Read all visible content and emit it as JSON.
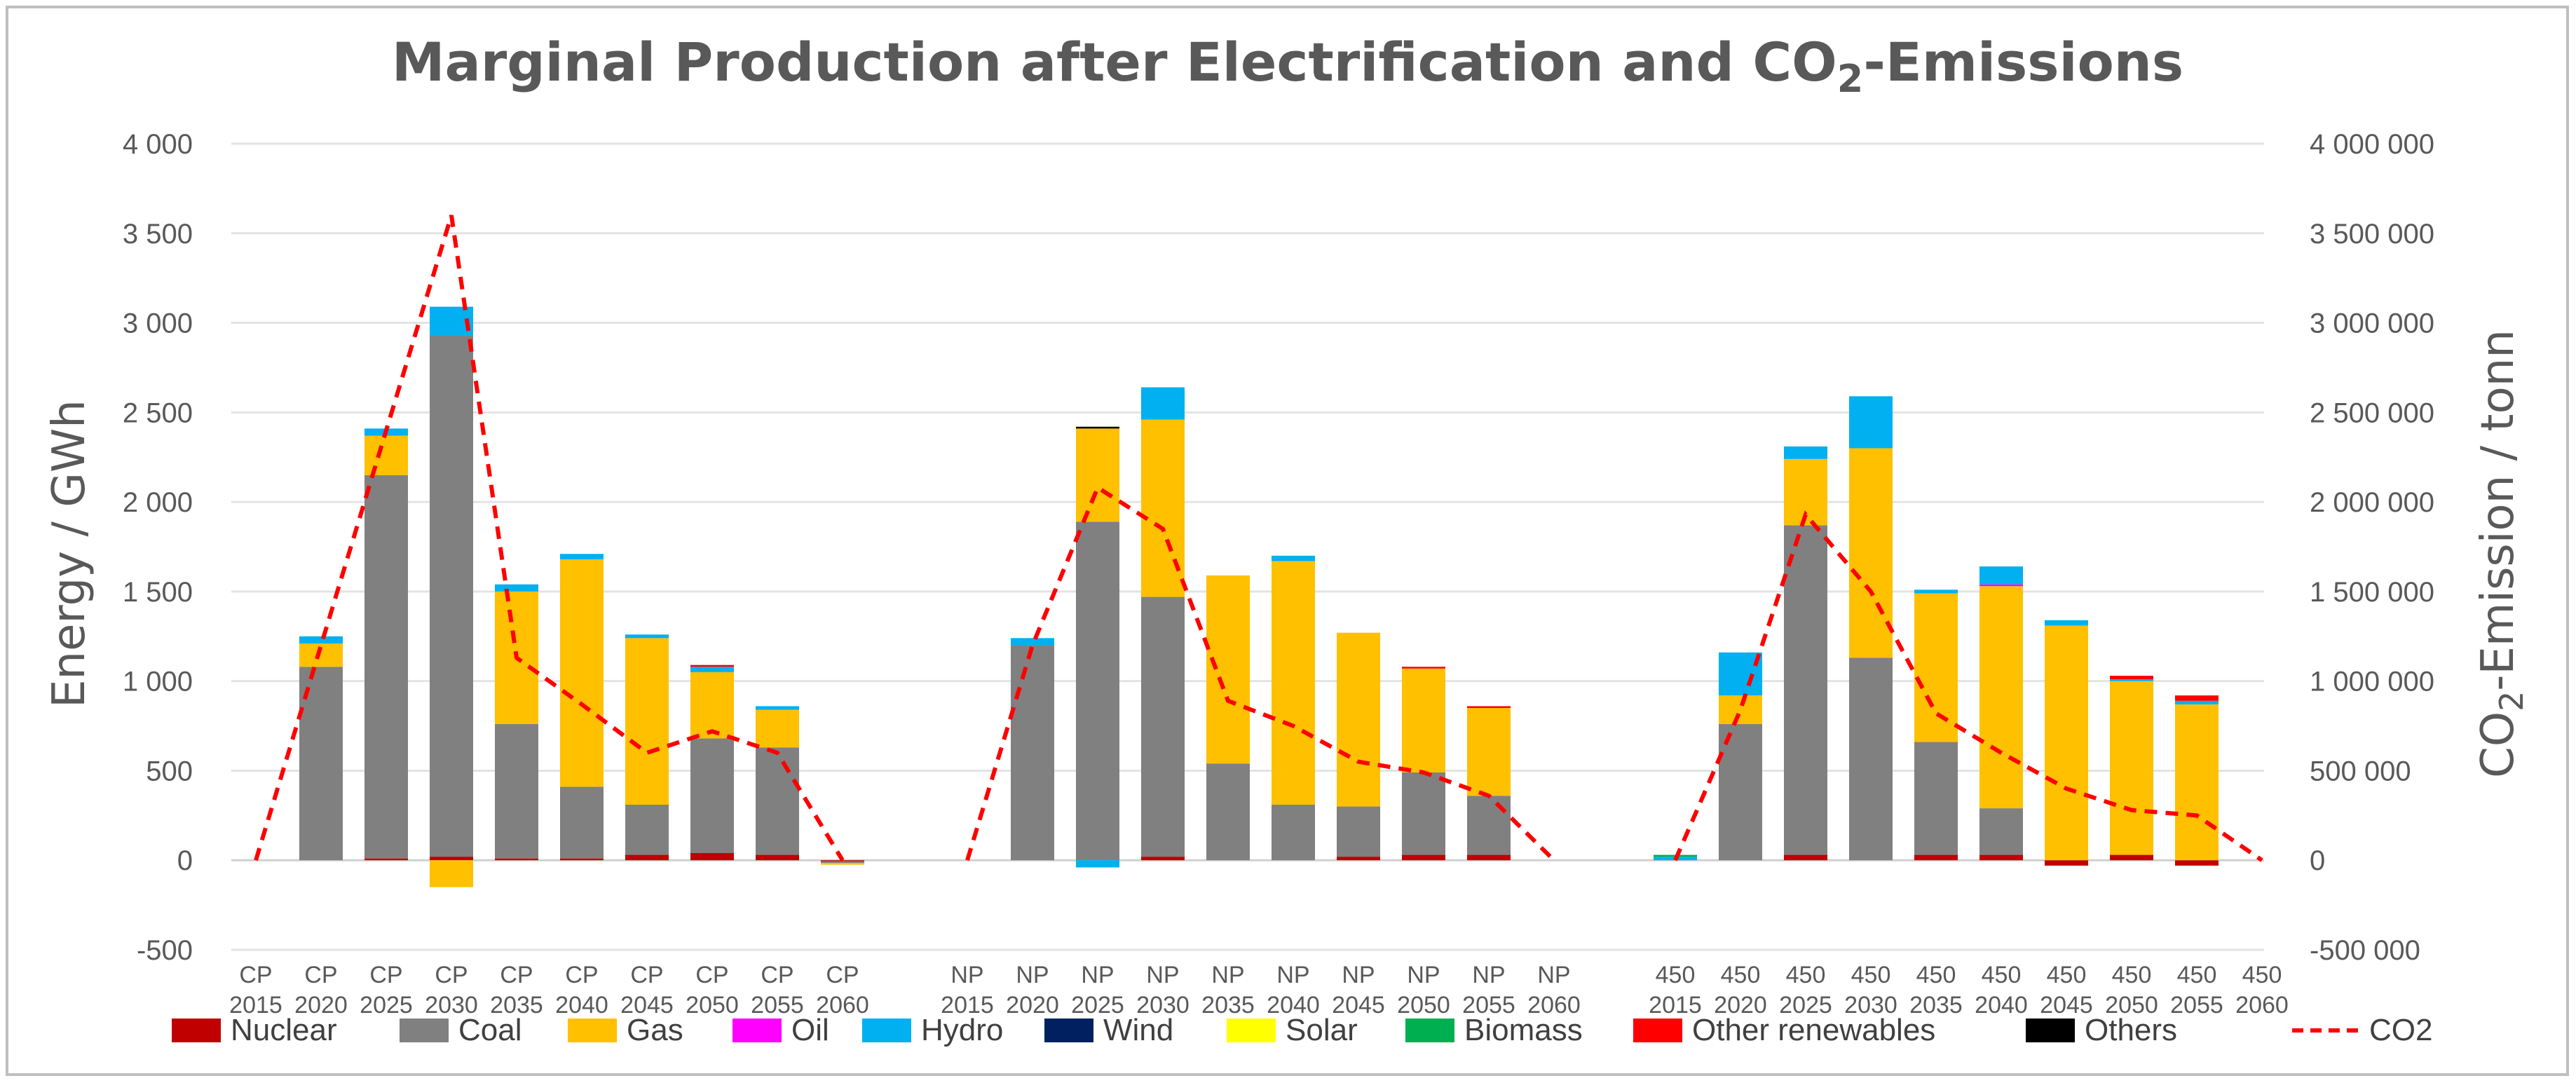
{
  "chart_data": {
    "type": "bar",
    "stacked": true,
    "title": "Marginal Production after Electrification and CO",
    "title_sub": "2",
    "title_tail": "-Emissions",
    "ylabel": "Energy / GWh",
    "y2label_pre": "CO",
    "y2label_sub": "2",
    "y2label_post": "-Emission / tonn",
    "ylim": [
      -500,
      4000
    ],
    "y2lim": [
      -500000,
      4000000
    ],
    "yticks": [
      -500,
      0,
      500,
      1000,
      1500,
      2000,
      2500,
      3000,
      3500,
      4000
    ],
    "ytick_labels": [
      "-500",
      "0",
      "500",
      "1 000",
      "1 500",
      "2 000",
      "2 500",
      "3 000",
      "3 500",
      "4 000"
    ],
    "y2ticks": [
      -500000,
      0,
      500000,
      1000000,
      1500000,
      2000000,
      2500000,
      3000000,
      3500000,
      4000000
    ],
    "y2tick_labels": [
      "-500 000",
      "0",
      "500 000",
      "1 000 000",
      "1 500 000",
      "2 000 000",
      "2 500 000",
      "3 000 000",
      "3 500 000",
      "4 000 000"
    ],
    "groups": [
      {
        "name": "CP",
        "years": [
          "2015",
          "2020",
          "2025",
          "2030",
          "2035",
          "2040",
          "2045",
          "2050",
          "2055",
          "2060"
        ]
      },
      {
        "name": "NP",
        "years": [
          "2015",
          "2020",
          "2025",
          "2030",
          "2035",
          "2040",
          "2045",
          "2050",
          "2055",
          "2060"
        ]
      },
      {
        "name": "450",
        "years": [
          "2015",
          "2020",
          "2025",
          "2030",
          "2035",
          "2040",
          "2045",
          "2050",
          "2055",
          "2060"
        ]
      }
    ],
    "series": [
      {
        "name": "Nuclear",
        "color": "#c00000",
        "values": [
          [
            0,
            0,
            10,
            20,
            10,
            10,
            30,
            40,
            30,
            -5
          ],
          [
            0,
            0,
            0,
            20,
            0,
            0,
            20,
            30,
            30,
            0
          ],
          [
            0,
            0,
            30,
            0,
            30,
            30,
            -30,
            30,
            -30,
            0
          ]
        ]
      },
      {
        "name": "Coal",
        "color": "#808080",
        "values": [
          [
            0,
            1080,
            2140,
            2910,
            750,
            400,
            280,
            640,
            600,
            -10
          ],
          [
            0,
            1200,
            1890,
            1450,
            540,
            310,
            280,
            460,
            330,
            0
          ],
          [
            0,
            760,
            1840,
            1130,
            630,
            260,
            0,
            0,
            0,
            0
          ]
        ]
      },
      {
        "name": "Gas",
        "color": "#ffc000",
        "values": [
          [
            0,
            130,
            220,
            -150,
            740,
            1270,
            930,
            370,
            210,
            -10
          ],
          [
            0,
            0,
            520,
            990,
            1050,
            1360,
            970,
            580,
            490,
            0
          ],
          [
            0,
            160,
            370,
            1170,
            830,
            1240,
            1310,
            970,
            870,
            0
          ]
        ]
      },
      {
        "name": "Oil",
        "color": "#ff00ff",
        "values": [
          [
            0,
            0,
            0,
            0,
            0,
            0,
            0,
            0,
            0,
            0
          ],
          [
            0,
            0,
            0,
            0,
            0,
            0,
            0,
            0,
            0,
            0
          ],
          [
            0,
            0,
            0,
            0,
            0,
            10,
            0,
            0,
            0,
            0
          ]
        ]
      },
      {
        "name": "Hydro",
        "color": "#00b0f0",
        "values": [
          [
            0,
            40,
            40,
            160,
            40,
            30,
            20,
            30,
            20,
            0
          ],
          [
            0,
            40,
            -40,
            180,
            0,
            30,
            0,
            0,
            0,
            0
          ],
          [
            20,
            240,
            70,
            290,
            20,
            100,
            30,
            10,
            20,
            0
          ]
        ]
      },
      {
        "name": "Wind",
        "color": "#002060",
        "values": [
          [
            0,
            0,
            0,
            0,
            0,
            0,
            0,
            0,
            0,
            0
          ],
          [
            0,
            0,
            0,
            0,
            0,
            0,
            0,
            0,
            0,
            0
          ],
          [
            0,
            0,
            0,
            0,
            0,
            0,
            0,
            0,
            0,
            0
          ]
        ]
      },
      {
        "name": "Solar",
        "color": "#ffff00",
        "values": [
          [
            0,
            0,
            0,
            0,
            0,
            0,
            0,
            0,
            0,
            0
          ],
          [
            0,
            0,
            0,
            0,
            0,
            0,
            0,
            0,
            0,
            0
          ],
          [
            0,
            0,
            0,
            0,
            0,
            0,
            0,
            0,
            0,
            0
          ]
        ]
      },
      {
        "name": "Biomass",
        "color": "#00b050",
        "values": [
          [
            0,
            0,
            0,
            0,
            0,
            0,
            0,
            0,
            0,
            0
          ],
          [
            0,
            0,
            0,
            0,
            0,
            0,
            0,
            0,
            0,
            0
          ],
          [
            10,
            0,
            0,
            0,
            0,
            0,
            0,
            0,
            0,
            0
          ]
        ]
      },
      {
        "name": "Other renewables",
        "color": "#ff0000",
        "values": [
          [
            0,
            0,
            0,
            0,
            0,
            0,
            0,
            10,
            0,
            0
          ],
          [
            0,
            0,
            0,
            0,
            0,
            0,
            0,
            10,
            10,
            0
          ],
          [
            0,
            0,
            0,
            0,
            0,
            0,
            0,
            20,
            30,
            0
          ]
        ]
      },
      {
        "name": "Others",
        "color": "#000000",
        "values": [
          [
            0,
            0,
            0,
            0,
            0,
            0,
            0,
            0,
            0,
            0
          ],
          [
            0,
            0,
            10,
            0,
            0,
            0,
            0,
            0,
            0,
            0
          ],
          [
            0,
            0,
            0,
            0,
            0,
            0,
            0,
            0,
            0,
            0
          ]
        ]
      }
    ],
    "co2": {
      "name": "CO2",
      "color": "#ff0000",
      "values": [
        [
          0,
          1200000,
          2400000,
          3600000,
          1130000,
          870000,
          600000,
          720000,
          600000,
          0
        ],
        [
          0,
          1200000,
          2080000,
          1850000,
          890000,
          750000,
          550000,
          490000,
          360000,
          0
        ],
        [
          0,
          840000,
          1930000,
          1500000,
          820000,
          600000,
          400000,
          280000,
          250000,
          0
        ]
      ]
    }
  }
}
